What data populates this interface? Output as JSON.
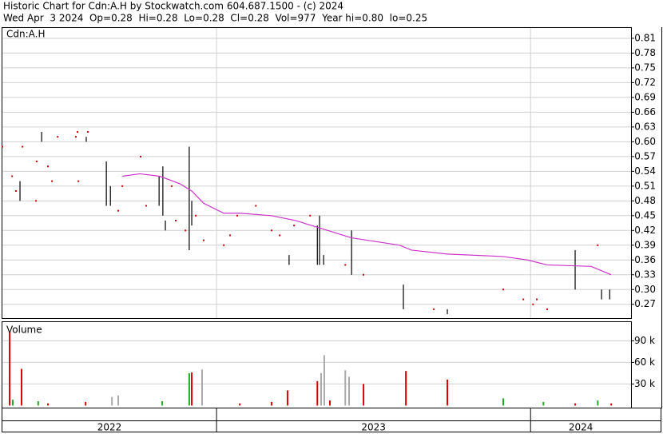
{
  "chart_data": {
    "type": "ohlc",
    "header": [
      "Historic Chart for Cdn:A.H by Stockwatch.com 604.687.1500 - (c) 2024",
      "Wed Apr  3 2024  Op=0.28  Hi=0.28  Lo=0.28  Cl=0.28  Vol=977  Year hi=0.80  lo=0.25"
    ],
    "title": "Cdn:A.H",
    "bar_color": "#000000",
    "dot_color": "#cc0000",
    "x": [
      2022.318,
      2022.349,
      2022.361,
      2022.374,
      2022.382,
      2022.425,
      2022.427,
      2022.443,
      2022.463,
      2022.476,
      2022.494,
      2022.552,
      2022.557,
      2022.56,
      2022.585,
      2022.59,
      2022.649,
      2022.662,
      2022.687,
      2022.7,
      2022.758,
      2022.776,
      2022.817,
      2022.829,
      2022.837,
      2022.857,
      2022.87,
      2022.901,
      2022.913,
      2022.921,
      2022.934,
      2022.959,
      2023.023,
      2023.043,
      2023.066,
      2023.125,
      2023.175,
      2023.201,
      2023.231,
      2023.247,
      2023.298,
      2023.321,
      2023.328,
      2023.341,
      2023.41,
      2023.43,
      2023.468,
      2023.595,
      2023.692,
      2023.735,
      2023.913,
      2023.977,
      2024.008,
      2024.02,
      2024.053,
      2024.142,
      2024.214,
      2024.226,
      2024.252
    ],
    "high": [
      0.59,
      0.53,
      0.5,
      0.52,
      0.59,
      0.48,
      0.56,
      0.62,
      0.55,
      0.52,
      0.61,
      0.61,
      0.62,
      0.52,
      0.61,
      0.62,
      0.56,
      0.51,
      0.46,
      0.51,
      0.57,
      0.47,
      0.53,
      0.55,
      0.44,
      0.51,
      0.44,
      0.42,
      0.59,
      0.48,
      0.45,
      0.4,
      0.39,
      0.41,
      0.45,
      0.47,
      0.42,
      0.41,
      0.37,
      0.43,
      0.45,
      0.43,
      0.45,
      0.37,
      0.35,
      0.42,
      0.33,
      0.31,
      0.26,
      0.26,
      0.3,
      0.28,
      0.27,
      0.28,
      0.26,
      0.38,
      0.39,
      0.3,
      0.3
    ],
    "low": [
      0.59,
      0.53,
      0.5,
      0.48,
      0.59,
      0.48,
      0.56,
      0.6,
      0.55,
      0.52,
      0.61,
      0.61,
      0.62,
      0.52,
      0.6,
      0.62,
      0.47,
      0.47,
      0.46,
      0.51,
      0.57,
      0.47,
      0.47,
      0.45,
      0.42,
      0.51,
      0.44,
      0.42,
      0.38,
      0.43,
      0.45,
      0.4,
      0.39,
      0.41,
      0.45,
      0.47,
      0.42,
      0.41,
      0.35,
      0.43,
      0.45,
      0.35,
      0.35,
      0.35,
      0.35,
      0.33,
      0.33,
      0.26,
      0.26,
      0.25,
      0.3,
      0.28,
      0.27,
      0.28,
      0.26,
      0.3,
      0.39,
      0.28,
      0.28
    ],
    "ma": {
      "color": "#cc33cc",
      "x": [
        2022.7,
        2022.756,
        2022.819,
        2022.883,
        2022.921,
        2022.959,
        2023.023,
        2023.074,
        2023.175,
        2023.252,
        2023.328,
        2023.43,
        2023.583,
        2023.621,
        2023.735,
        2023.913,
        2023.99,
        2024.053,
        2024.193,
        2024.257
      ],
      "values": [
        0.53,
        0.535,
        0.53,
        0.515,
        0.5,
        0.475,
        0.455,
        0.455,
        0.45,
        0.44,
        0.425,
        0.405,
        0.39,
        0.38,
        0.372,
        0.367,
        0.36,
        0.35,
        0.347,
        0.33
      ]
    },
    "xlim": [
      2022.318,
      2024.32
    ],
    "xticks": [
      2022,
      2023,
      2024
    ],
    "ylim": [
      0.242,
      0.831
    ],
    "yticks": [
      0.81,
      0.78,
      0.75,
      0.72,
      0.69,
      0.66,
      0.63,
      {
        "value": 0.6,
        "label": "0.60"
      },
      0.57,
      0.54,
      0.51,
      0.48,
      0.45,
      0.42,
      0.39,
      0.36,
      0.33,
      {
        "value": 0.3,
        "label": "0.30"
      },
      0.27
    ],
    "grid": true,
    "volume": {
      "title": "Volume",
      "x": [
        2022.341,
        2022.351,
        2022.379,
        2022.432,
        2022.463,
        2022.583,
        2022.667,
        2022.687,
        2022.827,
        2022.913,
        2022.921,
        2022.954,
        2023.074,
        2023.175,
        2023.226,
        2023.321,
        2023.333,
        2023.343,
        2023.361,
        2023.41,
        2023.422,
        2023.468,
        2023.603,
        2023.735,
        2023.913,
        2024.041,
        2024.142,
        2024.214,
        2024.257
      ],
      "values": [
        102000,
        8000,
        51000,
        6000,
        3000,
        5000,
        12000,
        14000,
        6000,
        45000,
        46000,
        50000,
        3000,
        5000,
        21000,
        34000,
        45000,
        70000,
        7000,
        49000,
        40000,
        30000,
        48000,
        36000,
        10000,
        5000,
        3000,
        7000,
        3000
      ],
      "colors": [
        "#dd0000",
        "#22aa22",
        "#dd0000",
        "#22aa22",
        "#dd0000",
        "#dd0000",
        "#aaaaaa",
        "#aaaaaa",
        "#22aa22",
        "#22aa22",
        "#dd0000",
        "#aaaaaa",
        "#dd0000",
        "#dd0000",
        "#dd0000",
        "#dd0000",
        "#aaaaaa",
        "#aaaaaa",
        "#dd0000",
        "#aaaaaa",
        "#aaaaaa",
        "#dd0000",
        "#dd0000",
        "#dd0000",
        "#22aa22",
        "#22aa22",
        "#dd0000",
        "#22aa22",
        "#dd0000"
      ],
      "ylim": [
        -4000,
        116000
      ],
      "yticks": [
        {
          "value": 90000,
          "label": "90 k"
        },
        {
          "value": 60000,
          "label": "60 k"
        },
        {
          "value": 30000,
          "label": "30 k"
        }
      ]
    }
  }
}
